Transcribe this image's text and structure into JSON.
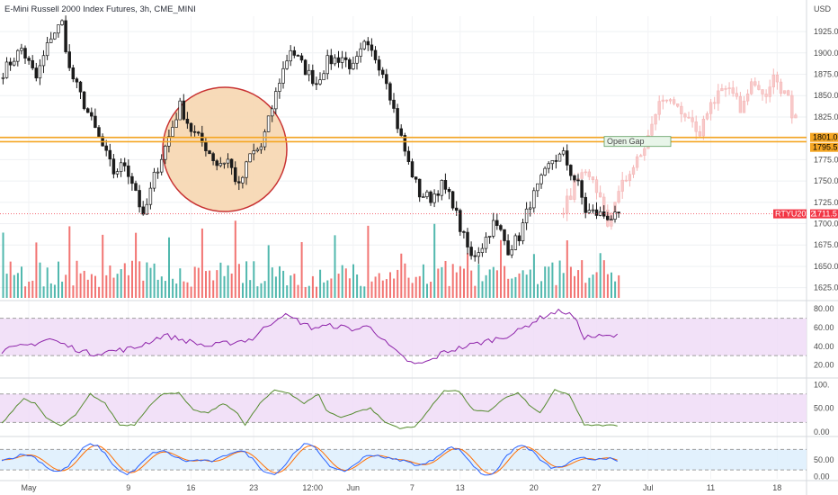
{
  "chart_data": {
    "type": "candlestick",
    "title": "E-Mini Russell 2000 Index Futures, 3h, CME_MINI",
    "currency": "USD",
    "price_axis": {
      "ylim": [
        1612,
        1943
      ],
      "ticks": [
        "1925.0",
        "1900.0",
        "1875.0",
        "1850.0",
        "1825.0",
        "1800.0",
        "1775.0",
        "1750.0",
        "1725.0",
        "1700.0",
        "1675.0",
        "1650.0",
        "1625.0"
      ],
      "tick_values": [
        1925,
        1900,
        1875,
        1850,
        1825,
        1800,
        1775,
        1750,
        1725,
        1700,
        1675,
        1650,
        1625
      ]
    },
    "x_labels": [
      "May",
      "9",
      "16",
      "23",
      "12:00",
      "Jun",
      "7",
      "13",
      "20",
      "27",
      "Jul",
      "11",
      "18"
    ],
    "price_path": {
      "bar_count": 168,
      "anchors": [
        [
          0,
          1878
        ],
        [
          5,
          1905
        ],
        [
          9,
          1870
        ],
        [
          13,
          1920
        ],
        [
          16,
          1935
        ],
        [
          18,
          1880
        ],
        [
          21,
          1850
        ],
        [
          26,
          1800
        ],
        [
          30,
          1760
        ],
        [
          33,
          1770
        ],
        [
          36,
          1740
        ],
        [
          38,
          1705
        ],
        [
          41,
          1755
        ],
        [
          44,
          1790
        ],
        [
          48,
          1838
        ],
        [
          51,
          1810
        ],
        [
          55,
          1790
        ],
        [
          58,
          1770
        ],
        [
          61,
          1775
        ],
        [
          64,
          1742
        ],
        [
          67,
          1780
        ],
        [
          70,
          1790
        ],
        [
          72,
          1820
        ],
        [
          75,
          1868
        ],
        [
          78,
          1905
        ],
        [
          82,
          1880
        ],
        [
          85,
          1865
        ],
        [
          88,
          1890
        ],
        [
          92,
          1895
        ],
        [
          95,
          1882
        ],
        [
          98,
          1908
        ],
        [
          101,
          1895
        ],
        [
          104,
          1870
        ],
        [
          107,
          1815
        ],
        [
          110,
          1770
        ],
        [
          113,
          1735
        ],
        [
          116,
          1730
        ],
        [
          119,
          1745
        ],
        [
          122,
          1725
        ],
        [
          124,
          1695
        ],
        [
          127,
          1660
        ],
        [
          130,
          1675
        ],
        [
          133,
          1700
        ],
        [
          135,
          1690
        ],
        [
          137,
          1670
        ],
        [
          140,
          1685
        ],
        [
          143,
          1725
        ],
        [
          146,
          1750
        ],
        [
          149,
          1775
        ],
        [
          152,
          1780
        ],
        [
          154,
          1760
        ],
        [
          156,
          1745
        ],
        [
          158,
          1715
        ]
      ]
    },
    "projection": {
      "description": "faded repeated price pattern",
      "anchors": [
        [
          152,
          1718
        ],
        [
          155,
          1745
        ],
        [
          158,
          1758
        ],
        [
          161,
          1740
        ],
        [
          164,
          1705
        ],
        [
          167,
          1745
        ],
        [
          171,
          1768
        ],
        [
          175,
          1800
        ],
        [
          179,
          1850
        ],
        [
          182,
          1842
        ],
        [
          186,
          1818
        ],
        [
          189,
          1805
        ],
        [
          193,
          1845
        ],
        [
          197,
          1858
        ],
        [
          200,
          1835
        ],
        [
          203,
          1862
        ],
        [
          206,
          1850
        ],
        [
          209,
          1870
        ],
        [
          212,
          1855
        ],
        [
          215,
          1820
        ]
      ]
    },
    "levels": [
      {
        "value": 1801,
        "color": "#f5a623"
      },
      {
        "value": 1796,
        "color": "#f5a623"
      }
    ],
    "current_price_line": {
      "value": 1711.5,
      "color": "#f23645"
    },
    "price_labels": [
      {
        "text": "1801.0",
        "value": 1801,
        "bg": "#f5a623",
        "fg": "#000000"
      },
      {
        "text": "1795.5",
        "value": 1795.5,
        "bg": "#f5a623",
        "fg": "#000000"
      },
      {
        "text": "1711.5",
        "value": 1711.5,
        "bg": "#f23645",
        "fg": "#ffffff"
      }
    ],
    "current_symbol": "RTYU2022",
    "annotation": {
      "text": "Open Gap",
      "bg": "#e8f5e9",
      "border": "#5b9c5e"
    },
    "highlight_circle": {
      "fill": "#f7d9b5",
      "stroke": "#c62828"
    },
    "volume": {
      "colors": {
        "up": "#26a69a",
        "down": "#ef5350"
      }
    },
    "rsi_panel": {
      "ticks": [
        "80.00",
        "60.00",
        "40.00",
        "20.00"
      ],
      "tick_values": [
        80,
        60,
        40,
        20
      ],
      "ylim": [
        8,
        86
      ],
      "band": [
        30,
        70
      ],
      "line_color": "#8e24aa",
      "band_color": "#f0dcf7",
      "anchors": [
        [
          0,
          35
        ],
        [
          8,
          42
        ],
        [
          13,
          48
        ],
        [
          18,
          40
        ],
        [
          24,
          32
        ],
        [
          30,
          35
        ],
        [
          36,
          38
        ],
        [
          40,
          45
        ],
        [
          44,
          52
        ],
        [
          50,
          46
        ],
        [
          56,
          40
        ],
        [
          62,
          44
        ],
        [
          68,
          48
        ],
        [
          72,
          62
        ],
        [
          76,
          74
        ],
        [
          80,
          68
        ],
        [
          84,
          60
        ],
        [
          90,
          62
        ],
        [
          96,
          58
        ],
        [
          100,
          62
        ],
        [
          104,
          44
        ],
        [
          108,
          30
        ],
        [
          112,
          20
        ],
        [
          116,
          24
        ],
        [
          120,
          34
        ],
        [
          124,
          38
        ],
        [
          130,
          44
        ],
        [
          136,
          50
        ],
        [
          140,
          56
        ],
        [
          144,
          66
        ],
        [
          148,
          74
        ],
        [
          152,
          78
        ],
        [
          155,
          72
        ],
        [
          158,
          50
        ]
      ]
    },
    "stoch_panel": {
      "ticks": [
        "100.",
        "50.00",
        "0.00"
      ],
      "tick_values": [
        100,
        50,
        0
      ],
      "ylim": [
        -6,
        110
      ],
      "band": [
        20,
        80
      ],
      "line_color": "#558b2f",
      "band_color": "#f0dcf7",
      "anchors": [
        [
          0,
          18
        ],
        [
          4,
          55
        ],
        [
          6,
          70
        ],
        [
          9,
          60
        ],
        [
          12,
          30
        ],
        [
          16,
          12
        ],
        [
          20,
          35
        ],
        [
          24,
          80
        ],
        [
          28,
          60
        ],
        [
          32,
          14
        ],
        [
          36,
          15
        ],
        [
          40,
          55
        ],
        [
          44,
          82
        ],
        [
          48,
          82
        ],
        [
          52,
          45
        ],
        [
          56,
          40
        ],
        [
          60,
          60
        ],
        [
          64,
          40
        ],
        [
          66,
          14
        ],
        [
          70,
          60
        ],
        [
          74,
          88
        ],
        [
          78,
          82
        ],
        [
          82,
          60
        ],
        [
          86,
          80
        ],
        [
          88,
          45
        ],
        [
          92,
          30
        ],
        [
          96,
          42
        ],
        [
          100,
          50
        ],
        [
          104,
          20
        ],
        [
          108,
          8
        ],
        [
          112,
          10
        ],
        [
          116,
          48
        ],
        [
          120,
          88
        ],
        [
          124,
          86
        ],
        [
          128,
          45
        ],
        [
          132,
          42
        ],
        [
          136,
          70
        ],
        [
          140,
          82
        ],
        [
          144,
          50
        ],
        [
          146,
          40
        ],
        [
          150,
          88
        ],
        [
          154,
          78
        ],
        [
          158,
          14
        ]
      ]
    },
    "kd_panel": {
      "ticks": [
        "50.00",
        "0.00"
      ],
      "tick_values": [
        50,
        0
      ],
      "ylim": [
        -6,
        110
      ],
      "band": [
        20,
        80
      ],
      "k_color": "#2962ff",
      "d_color": "#ff6d00",
      "band_color": "#ddeefd"
    }
  }
}
